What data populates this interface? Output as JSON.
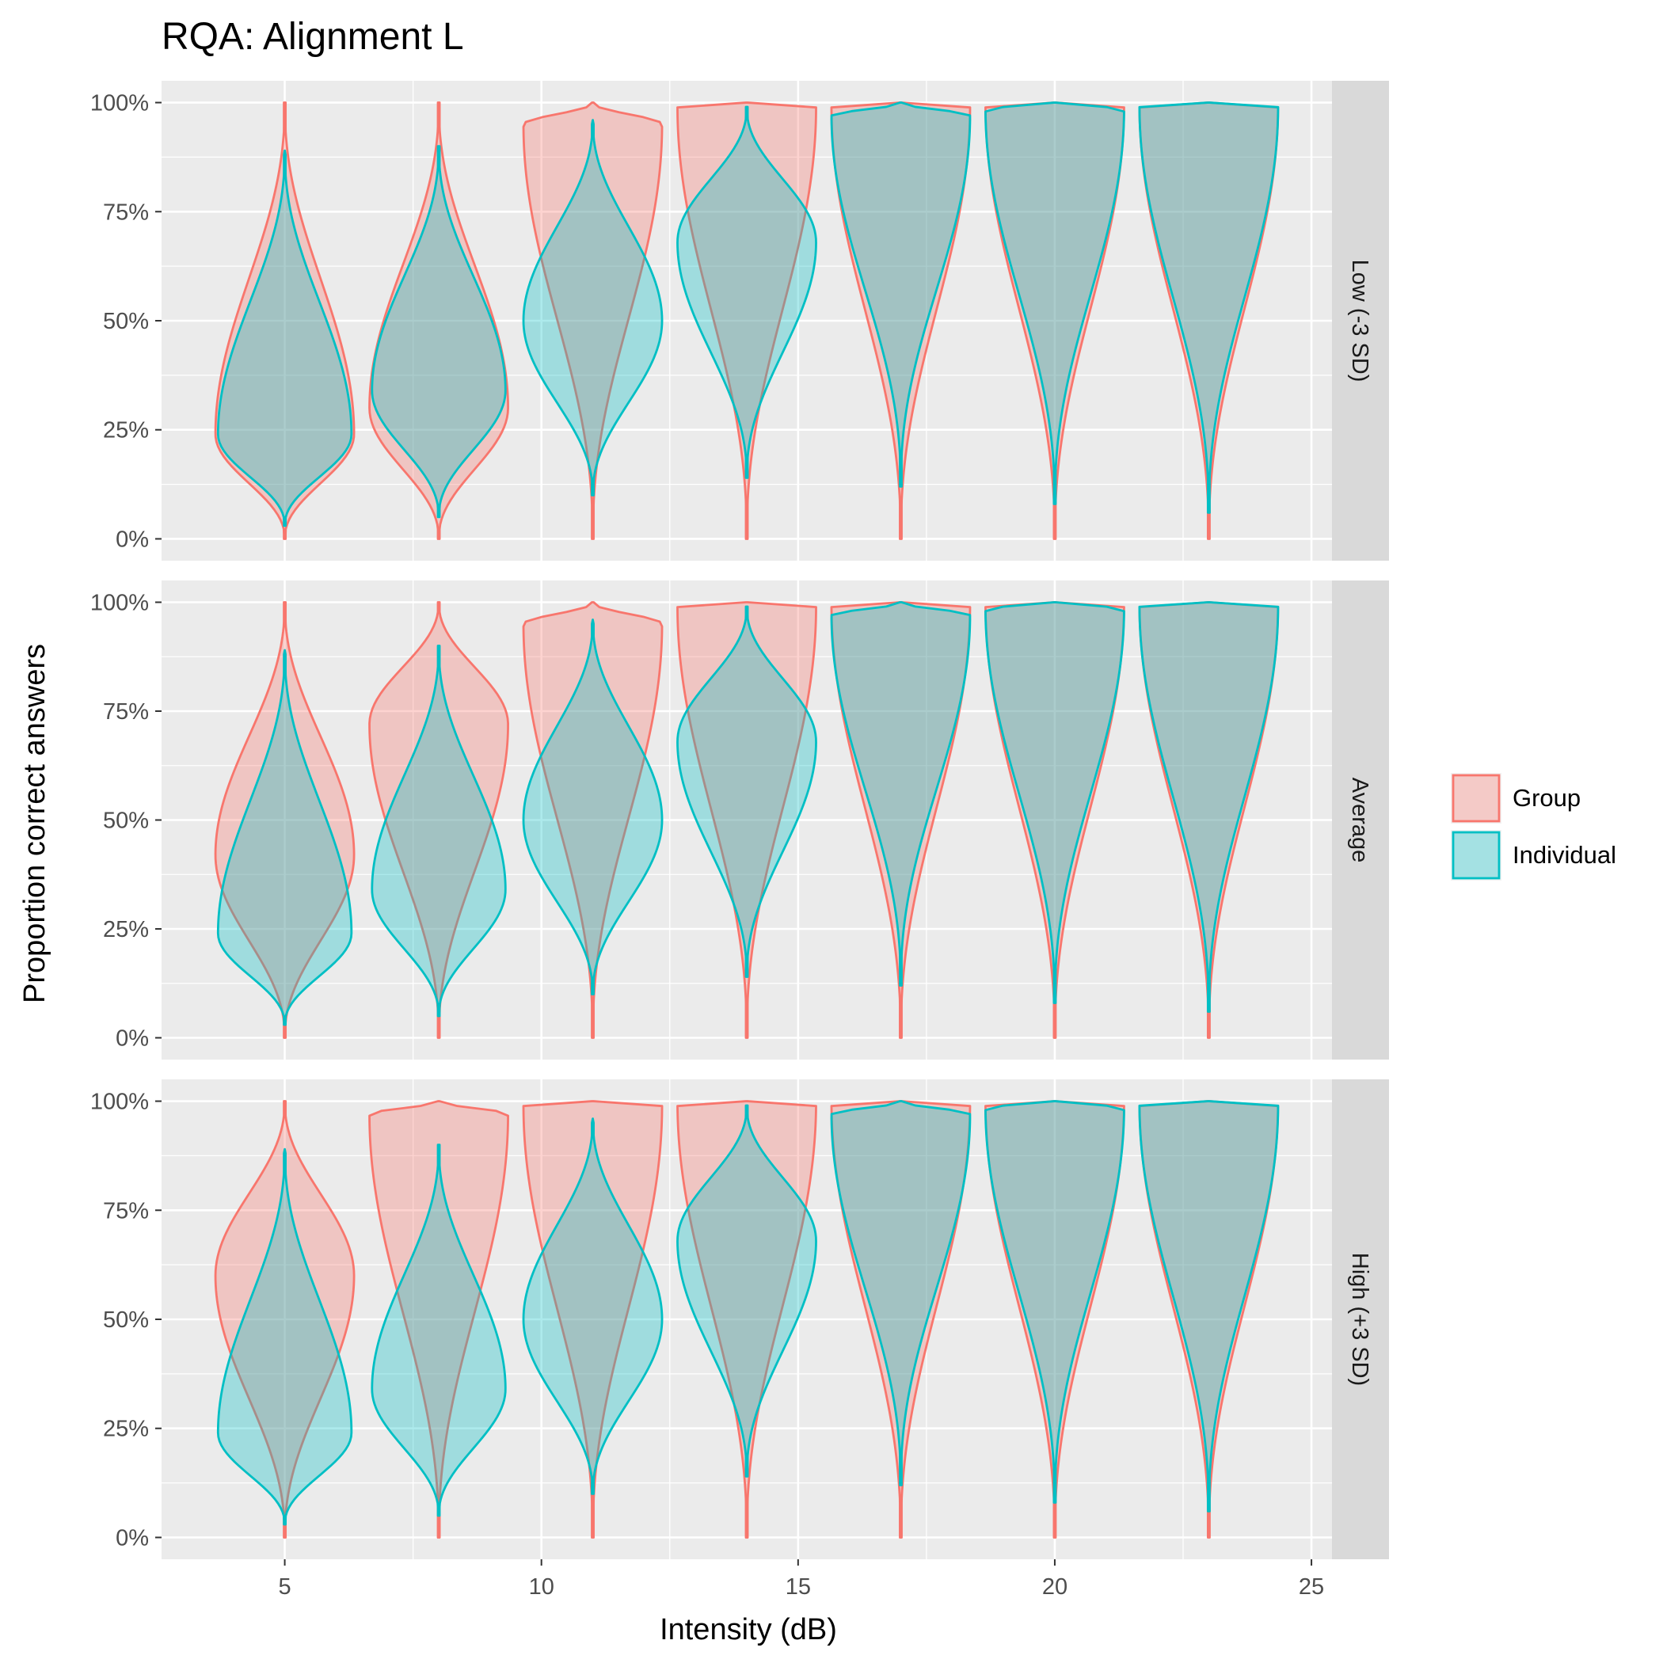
{
  "chart_data": {
    "type": "violin",
    "title": "RQA: Alignment L",
    "xlabel": "Intensity (dB)",
    "ylabel": "Proportion correct answers",
    "xlim": [
      2.6,
      25.4
    ],
    "ylim": [
      -0.05,
      1.05
    ],
    "x_ticks": [
      5,
      10,
      15,
      20,
      25
    ],
    "y_ticks": [
      {
        "value": 0,
        "label": "0%"
      },
      {
        "value": 0.25,
        "label": "25%"
      },
      {
        "value": 0.5,
        "label": "50%"
      },
      {
        "value": 0.75,
        "label": "75%"
      },
      {
        "value": 1,
        "label": "100%"
      }
    ],
    "x": [
      5,
      8,
      11,
      14,
      17,
      20,
      23
    ],
    "legend": {
      "position": "right",
      "entries": [
        {
          "name": "Group",
          "stroke": "#F8766D",
          "fill": "#F8766D"
        },
        {
          "name": "Individual",
          "stroke": "#00BFC4",
          "fill": "#00BFC4"
        }
      ]
    },
    "panel_colors": {
      "background": "#EBEBEB",
      "grid": "#FFFFFF",
      "strip": "#D9D9D9",
      "text": "#4D4D4D"
    },
    "facets": [
      {
        "label": "Low (-3 SD)",
        "series": [
          {
            "name": "Group",
            "violins": [
              {
                "x": 5,
                "range": [
                  0.0,
                  1.0
                ],
                "peak": 0.24,
                "halfwidth": 1.35
              },
              {
                "x": 8,
                "range": [
                  0.0,
                  1.0
                ],
                "peak": 0.3,
                "halfwidth": 1.35
              },
              {
                "x": 11,
                "range": [
                  0.0,
                  1.0
                ],
                "peak": 0.95,
                "halfwidth": 1.35
              },
              {
                "x": 14,
                "range": [
                  0.0,
                  1.0
                ],
                "peak": 0.99,
                "halfwidth": 1.35
              },
              {
                "x": 17,
                "range": [
                  0.0,
                  1.0
                ],
                "peak": 0.99,
                "halfwidth": 1.35
              },
              {
                "x": 20,
                "range": [
                  0.0,
                  1.0
                ],
                "peak": 0.995,
                "halfwidth": 1.35
              },
              {
                "x": 23,
                "range": [
                  0.0,
                  1.0
                ],
                "peak": 0.995,
                "halfwidth": 1.35
              }
            ]
          },
          {
            "name": "Individual",
            "violins": [
              {
                "x": 5,
                "range": [
                  0.03,
                  0.89
                ],
                "peak": 0.24,
                "halfwidth": 1.3
              },
              {
                "x": 8,
                "range": [
                  0.05,
                  0.9
                ],
                "peak": 0.34,
                "halfwidth": 1.3
              },
              {
                "x": 11,
                "range": [
                  0.1,
                  0.96
                ],
                "peak": 0.5,
                "halfwidth": 1.35
              },
              {
                "x": 14,
                "range": [
                  0.14,
                  0.99
                ],
                "peak": 0.68,
                "halfwidth": 1.35
              },
              {
                "x": 17,
                "range": [
                  0.12,
                  1.0
                ],
                "peak": 0.97,
                "halfwidth": 1.35
              },
              {
                "x": 20,
                "range": [
                  0.08,
                  1.0
                ],
                "peak": 0.985,
                "halfwidth": 1.35
              },
              {
                "x": 23,
                "range": [
                  0.06,
                  1.0
                ],
                "peak": 0.99,
                "halfwidth": 1.35
              }
            ]
          }
        ]
      },
      {
        "label": "Average",
        "series": [
          {
            "name": "Group",
            "violins": [
              {
                "x": 5,
                "range": [
                  0.0,
                  1.0
                ],
                "peak": 0.42,
                "halfwidth": 1.35
              },
              {
                "x": 8,
                "range": [
                  0.0,
                  1.0
                ],
                "peak": 0.72,
                "halfwidth": 1.35
              },
              {
                "x": 11,
                "range": [
                  0.0,
                  1.0
                ],
                "peak": 0.95,
                "halfwidth": 1.35
              },
              {
                "x": 14,
                "range": [
                  0.0,
                  1.0
                ],
                "peak": 0.99,
                "halfwidth": 1.35
              },
              {
                "x": 17,
                "range": [
                  0.0,
                  1.0
                ],
                "peak": 0.995,
                "halfwidth": 1.35
              },
              {
                "x": 20,
                "range": [
                  0.0,
                  1.0
                ],
                "peak": 0.998,
                "halfwidth": 1.35
              },
              {
                "x": 23,
                "range": [
                  0.0,
                  1.0
                ],
                "peak": 0.998,
                "halfwidth": 1.35
              }
            ]
          },
          {
            "name": "Individual",
            "violins": [
              {
                "x": 5,
                "range": [
                  0.03,
                  0.89
                ],
                "peak": 0.24,
                "halfwidth": 1.3
              },
              {
                "x": 8,
                "range": [
                  0.05,
                  0.9
                ],
                "peak": 0.34,
                "halfwidth": 1.3
              },
              {
                "x": 11,
                "range": [
                  0.1,
                  0.96
                ],
                "peak": 0.5,
                "halfwidth": 1.35
              },
              {
                "x": 14,
                "range": [
                  0.14,
                  0.99
                ],
                "peak": 0.68,
                "halfwidth": 1.35
              },
              {
                "x": 17,
                "range": [
                  0.12,
                  1.0
                ],
                "peak": 0.97,
                "halfwidth": 1.35
              },
              {
                "x": 20,
                "range": [
                  0.08,
                  1.0
                ],
                "peak": 0.985,
                "halfwidth": 1.35
              },
              {
                "x": 23,
                "range": [
                  0.06,
                  1.0
                ],
                "peak": 0.99,
                "halfwidth": 1.35
              }
            ]
          }
        ]
      },
      {
        "label": "High (+3 SD)",
        "series": [
          {
            "name": "Group",
            "violins": [
              {
                "x": 5,
                "range": [
                  0.0,
                  1.0
                ],
                "peak": 0.6,
                "halfwidth": 1.35
              },
              {
                "x": 8,
                "range": [
                  0.0,
                  1.0
                ],
                "peak": 0.97,
                "halfwidth": 1.35
              },
              {
                "x": 11,
                "range": [
                  0.0,
                  1.0
                ],
                "peak": 0.99,
                "halfwidth": 1.35
              },
              {
                "x": 14,
                "range": [
                  0.0,
                  1.0
                ],
                "peak": 0.998,
                "halfwidth": 1.35
              },
              {
                "x": 17,
                "range": [
                  0.0,
                  1.0
                ],
                "peak": 0.999,
                "halfwidth": 1.35
              },
              {
                "x": 20,
                "range": [
                  0.0,
                  1.0
                ],
                "peak": 0.999,
                "halfwidth": 1.35
              },
              {
                "x": 23,
                "range": [
                  0.0,
                  1.0
                ],
                "peak": 0.999,
                "halfwidth": 1.35
              }
            ]
          },
          {
            "name": "Individual",
            "violins": [
              {
                "x": 5,
                "range": [
                  0.03,
                  0.89
                ],
                "peak": 0.24,
                "halfwidth": 1.3
              },
              {
                "x": 8,
                "range": [
                  0.05,
                  0.9
                ],
                "peak": 0.34,
                "halfwidth": 1.3
              },
              {
                "x": 11,
                "range": [
                  0.1,
                  0.96
                ],
                "peak": 0.5,
                "halfwidth": 1.35
              },
              {
                "x": 14,
                "range": [
                  0.14,
                  0.99
                ],
                "peak": 0.68,
                "halfwidth": 1.35
              },
              {
                "x": 17,
                "range": [
                  0.12,
                  1.0
                ],
                "peak": 0.97,
                "halfwidth": 1.35
              },
              {
                "x": 20,
                "range": [
                  0.08,
                  1.0
                ],
                "peak": 0.985,
                "halfwidth": 1.35
              },
              {
                "x": 23,
                "range": [
                  0.06,
                  1.0
                ],
                "peak": 0.99,
                "halfwidth": 1.35
              }
            ]
          }
        ]
      }
    ]
  }
}
